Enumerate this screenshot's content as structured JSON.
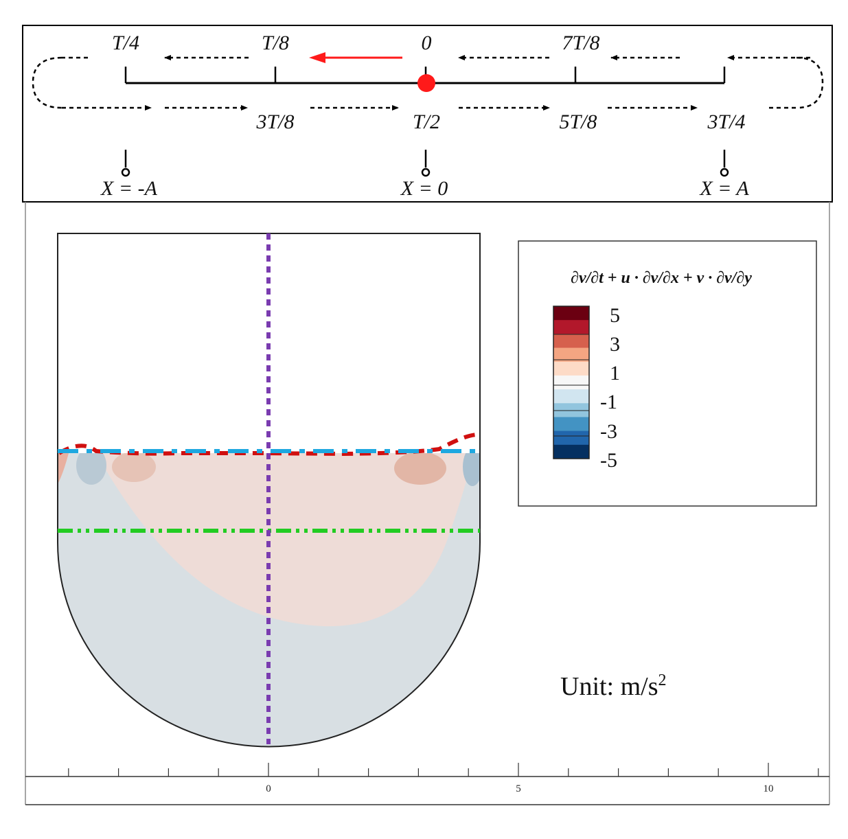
{
  "motion_diagram": {
    "phase_labels_top": [
      "T/4",
      "T/8",
      "0",
      "7T/8"
    ],
    "phase_labels_bottom": [
      "3T/8",
      "T/2",
      "5T/8",
      "3T/4"
    ],
    "position_labels": [
      "X = -A",
      "X = 0",
      "X = A"
    ],
    "current_phase_marker_color": "#ff1a1a"
  },
  "contour_plot": {
    "legend_title": "∂v/∂t + u · ∂v/∂x + v · ∂v/∂y",
    "colorbar_ticks": [
      "5",
      "3",
      "1",
      "-1",
      "-3",
      "-5"
    ],
    "unit_label": "Unit: m/s",
    "unit_exponent": "2",
    "colormap": [
      "#6b0011",
      "#b2182b",
      "#d6604d",
      "#f4a582",
      "#fddbc7",
      "#f7f7f7",
      "#d1e5f0",
      "#92c5de",
      "#4393c3",
      "#2166ac",
      "#053061"
    ],
    "reference_lines": {
      "free_surface_red": "#d01010",
      "free_surface_blue": "#1ea8e0",
      "green_line": "#22cc22",
      "vertical_purple": "#7a3cb0"
    }
  },
  "x_axis": {
    "tick_labels": [
      "0",
      "5",
      "10"
    ]
  }
}
